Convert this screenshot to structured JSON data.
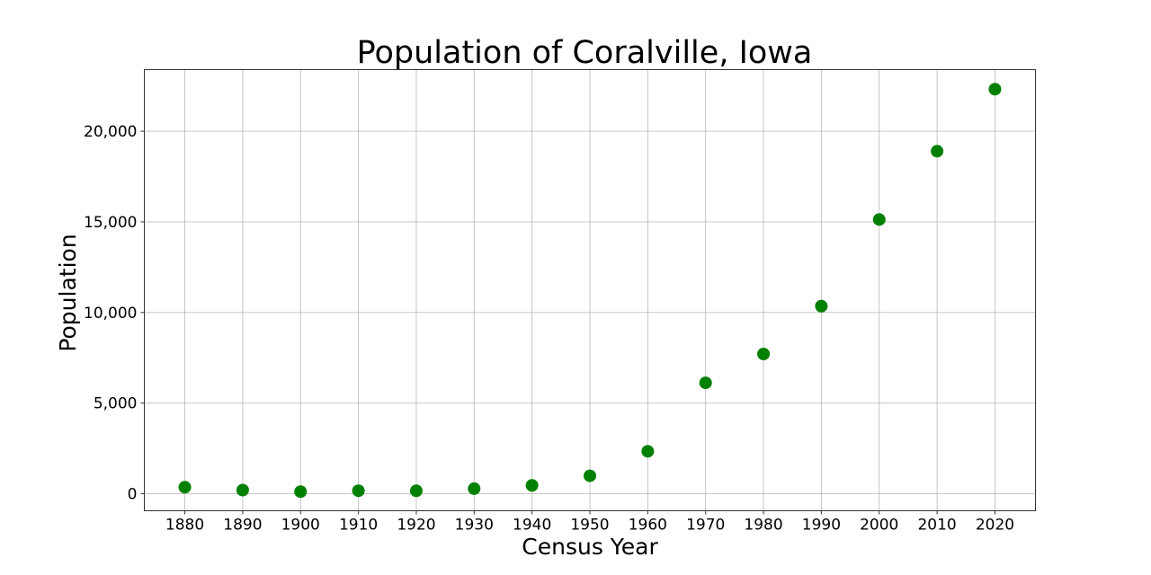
{
  "chart_data": {
    "type": "scatter",
    "title": "Population of Coralville, Iowa",
    "xlabel": "Census Year",
    "ylabel": "Population",
    "x": [
      1880,
      1890,
      1900,
      1910,
      1920,
      1930,
      1940,
      1950,
      1960,
      1970,
      1980,
      1990,
      2000,
      2010,
      2020
    ],
    "values": [
      360,
      200,
      115,
      165,
      160,
      280,
      460,
      990,
      2340,
      6120,
      7710,
      10350,
      15130,
      18900,
      22320
    ],
    "x_ticks": [
      "1880",
      "1890",
      "1900",
      "1910",
      "1920",
      "1930",
      "1940",
      "1950",
      "1960",
      "1970",
      "1980",
      "1990",
      "2000",
      "2010",
      "2020"
    ],
    "y_ticks": [
      0,
      5000,
      10000,
      15000,
      20000
    ],
    "y_tick_labels": [
      "0",
      "5,000",
      "10,000",
      "15,000",
      "20,000"
    ],
    "xlim": [
      1873,
      2027
    ],
    "ylim": [
      -940,
      23400
    ],
    "grid": true,
    "marker_color": "#008000",
    "legend": null
  }
}
